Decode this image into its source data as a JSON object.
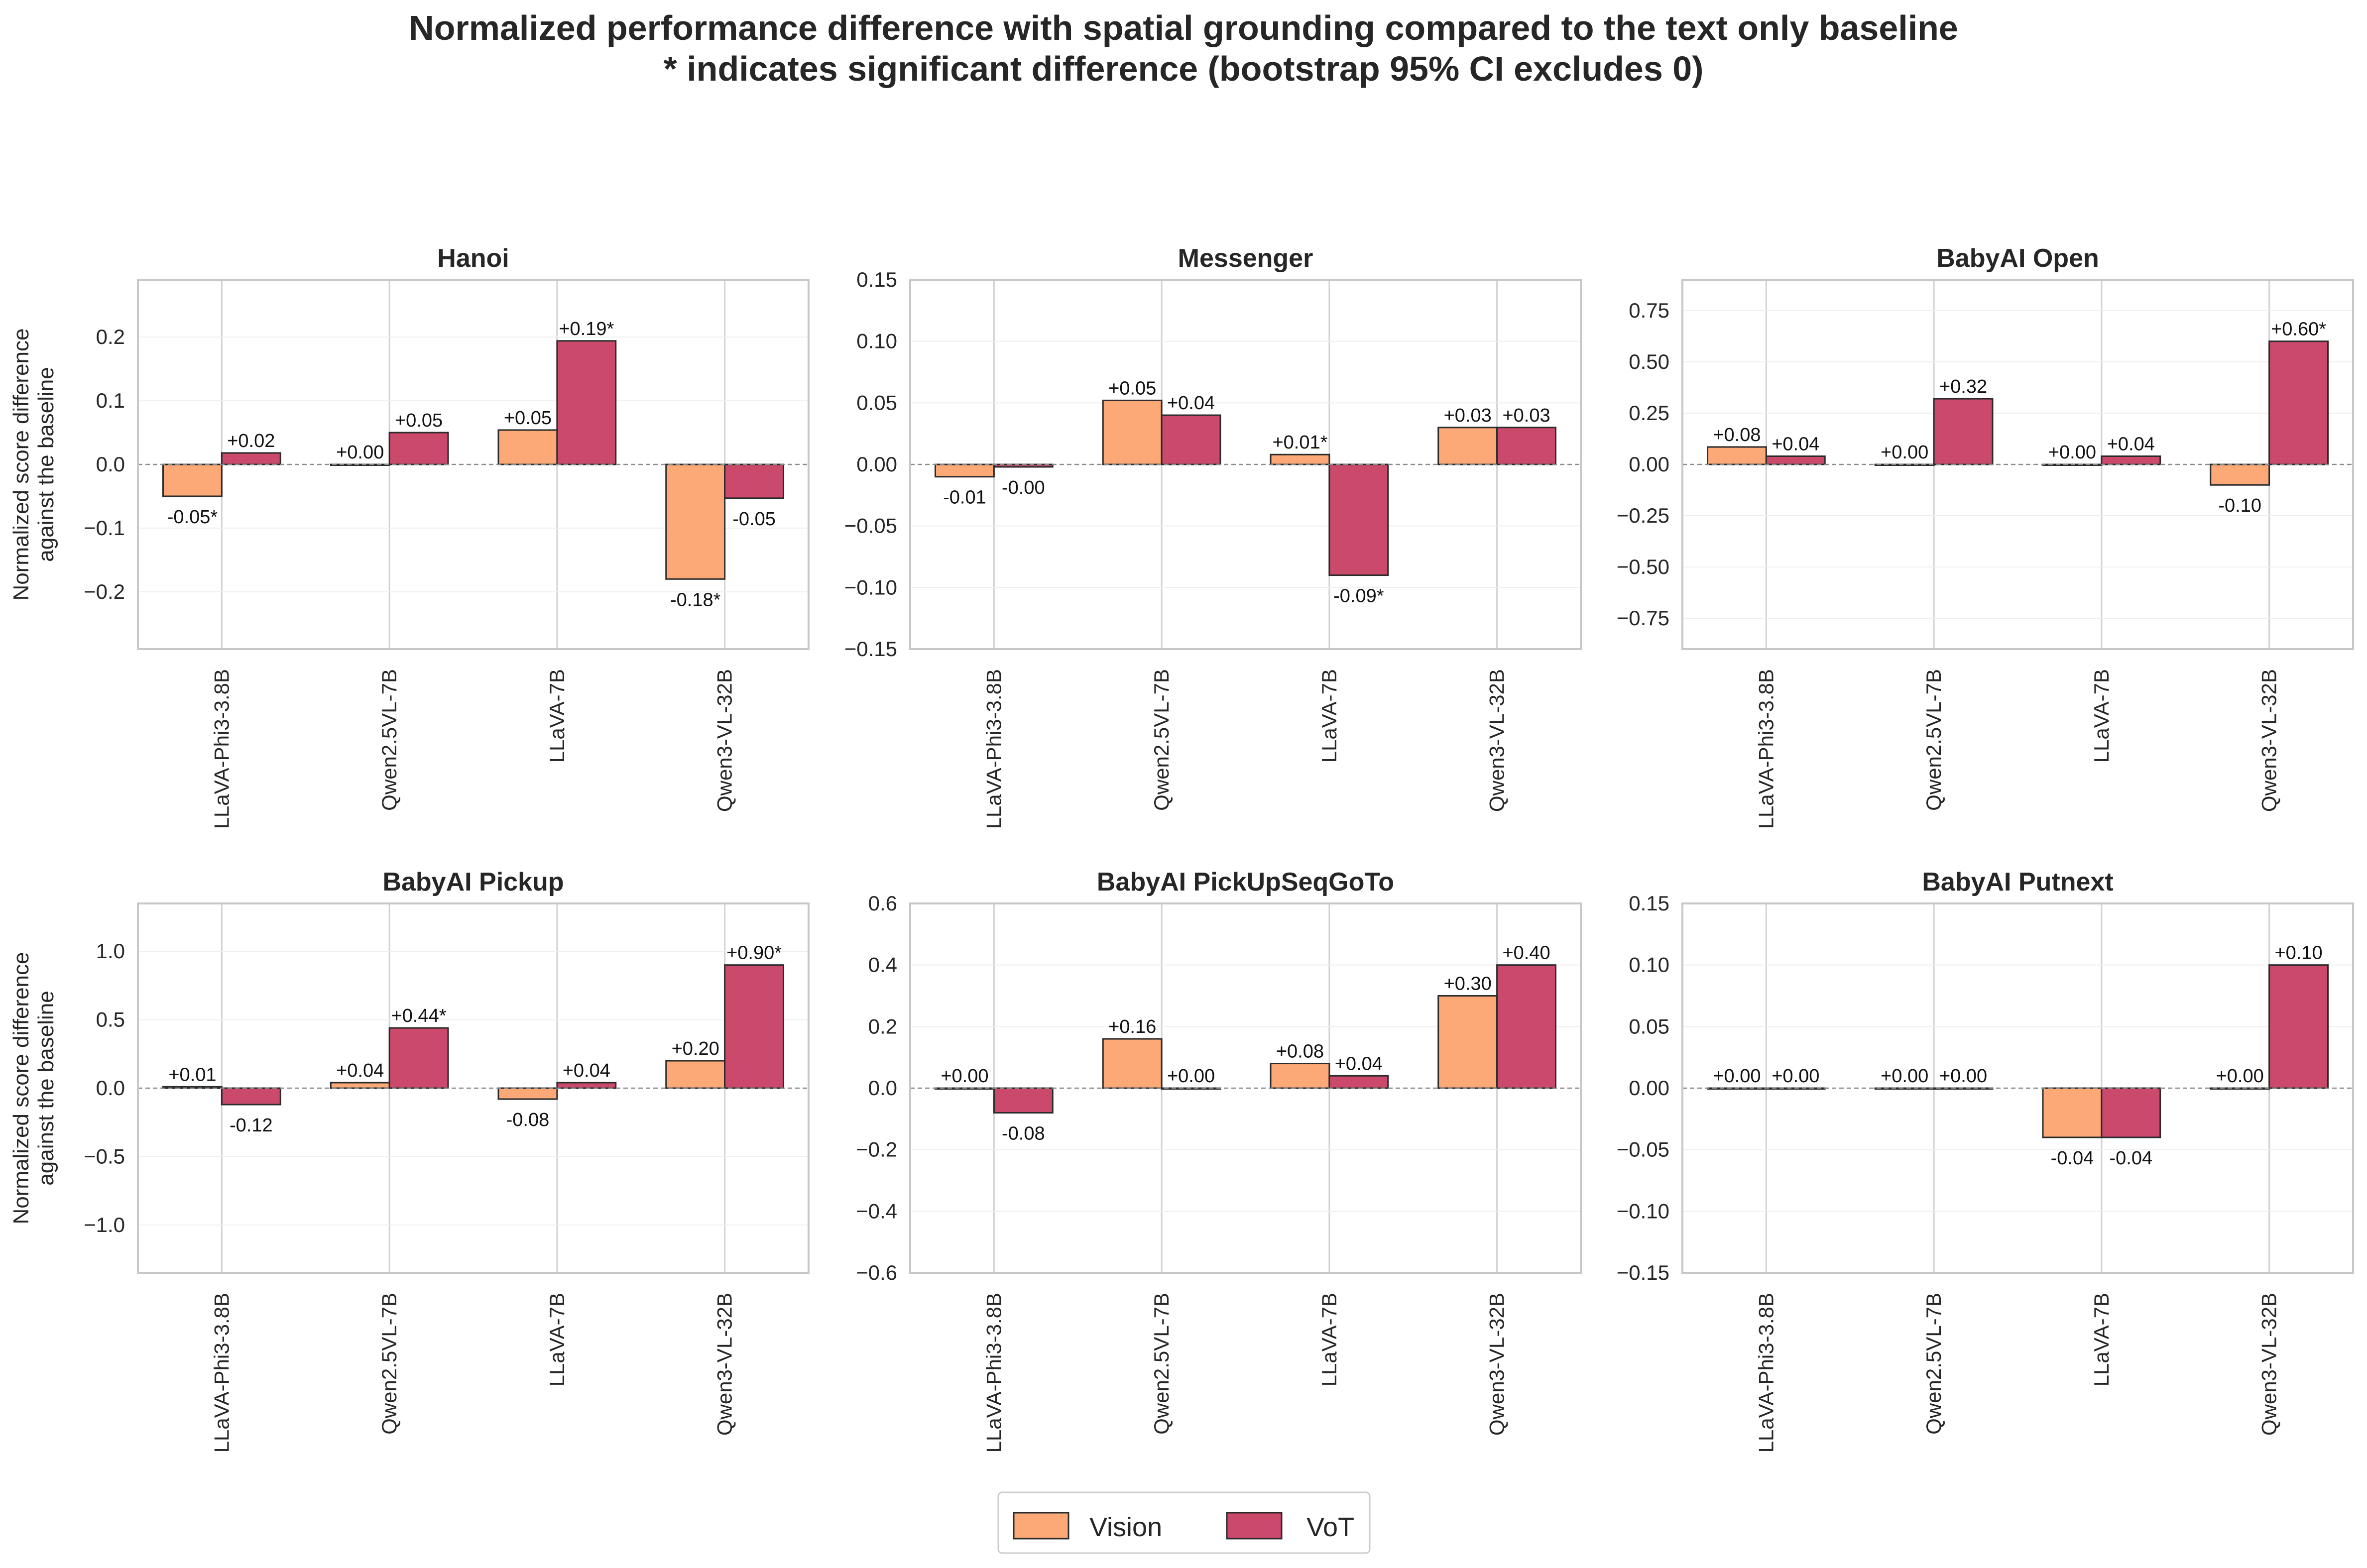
{
  "figure": {
    "title_line1": "Normalized performance difference with spatial grounding compared to the text only baseline",
    "title_line2": "* indicates significant difference (bootstrap 95% CI excludes 0)"
  },
  "legend": [
    {
      "name": "Vision",
      "color": "#FCA977"
    },
    {
      "name": "VoT",
      "color": "#CB4A6C"
    }
  ],
  "colors": {
    "vision": "#FCA977",
    "vot": "#CB4A6C",
    "edge": "#2b2b2b",
    "grid": "#e6e6e6",
    "frame": "#c8c8c8"
  },
  "ylabel_line1": "Normalized score difference",
  "ylabel_line2": "against the baseline",
  "chart_data": [
    {
      "type": "bar",
      "title": "Hanoi",
      "categories": [
        "LLaVA-Phi3-3.8B",
        "Qwen2.5VL-7B",
        "LLaVA-7B",
        "Qwen3-VL-32B"
      ],
      "series": [
        {
          "name": "Vision",
          "values": [
            -0.05,
            0.0,
            0.054,
            -0.18
          ],
          "labels": [
            "-0.05*",
            "+0.00",
            "+0.05",
            "-0.18*"
          ]
        },
        {
          "name": "VoT",
          "values": [
            0.018,
            0.05,
            0.194,
            -0.053
          ],
          "labels": [
            "+0.02",
            "+0.05",
            "+0.19*",
            "-0.05"
          ]
        }
      ],
      "ylim": [
        -0.29,
        0.29
      ],
      "yticks": [
        -0.2,
        -0.1,
        0.0,
        0.1,
        0.2
      ],
      "ytick_labels": [
        "−0.2",
        "−0.1",
        "0.0",
        "0.1",
        "0.2"
      ]
    },
    {
      "type": "bar",
      "title": "Messenger",
      "categories": [
        "LLaVA-Phi3-3.8B",
        "Qwen2.5VL-7B",
        "LLaVA-7B",
        "Qwen3-VL-32B"
      ],
      "series": [
        {
          "name": "Vision",
          "values": [
            -0.01,
            0.052,
            0.008,
            0.03
          ],
          "labels": [
            "-0.01",
            "+0.05",
            "+0.01*",
            "+0.03"
          ]
        },
        {
          "name": "VoT",
          "values": [
            -0.002,
            0.04,
            -0.09,
            0.03
          ],
          "labels": [
            "-0.00",
            "+0.04",
            "-0.09*",
            "+0.03"
          ]
        }
      ],
      "ylim": [
        -0.15,
        0.15
      ],
      "yticks": [
        -0.15,
        -0.1,
        -0.05,
        0.0,
        0.05,
        0.1,
        0.15
      ],
      "ytick_labels": [
        "−0.15",
        "−0.10",
        "−0.05",
        "0.00",
        "0.05",
        "0.10",
        "0.15"
      ]
    },
    {
      "type": "bar",
      "title": "BabyAI Open",
      "categories": [
        "LLaVA-Phi3-3.8B",
        "Qwen2.5VL-7B",
        "LLaVA-7B",
        "Qwen3-VL-32B"
      ],
      "series": [
        {
          "name": "Vision",
          "values": [
            0.085,
            0.0,
            0.0,
            -0.1
          ],
          "labels": [
            "+0.08",
            "+0.00",
            "+0.00",
            "-0.10"
          ]
        },
        {
          "name": "VoT",
          "values": [
            0.04,
            0.32,
            0.04,
            0.6
          ],
          "labels": [
            "+0.04",
            "+0.32",
            "+0.04",
            "+0.60*"
          ]
        }
      ],
      "ylim": [
        -0.9,
        0.9
      ],
      "yticks": [
        -0.75,
        -0.5,
        -0.25,
        0.0,
        0.25,
        0.5,
        0.75
      ],
      "ytick_labels": [
        "−0.75",
        "−0.50",
        "−0.25",
        "0.00",
        "0.25",
        "0.50",
        "0.75"
      ]
    },
    {
      "type": "bar",
      "title": "BabyAI Pickup",
      "categories": [
        "LLaVA-Phi3-3.8B",
        "Qwen2.5VL-7B",
        "LLaVA-7B",
        "Qwen3-VL-32B"
      ],
      "series": [
        {
          "name": "Vision",
          "values": [
            0.01,
            0.04,
            -0.08,
            0.2
          ],
          "labels": [
            "+0.01",
            "+0.04",
            "-0.08",
            "+0.20"
          ]
        },
        {
          "name": "VoT",
          "values": [
            -0.12,
            0.44,
            0.04,
            0.9
          ],
          "labels": [
            "-0.12",
            "+0.44*",
            "+0.04",
            "+0.90*"
          ]
        }
      ],
      "ylim": [
        -1.35,
        1.35
      ],
      "yticks": [
        -1.0,
        -0.5,
        0.0,
        0.5,
        1.0
      ],
      "ytick_labels": [
        "−1.0",
        "−0.5",
        "0.0",
        "0.5",
        "1.0"
      ]
    },
    {
      "type": "bar",
      "title": "BabyAI PickUpSeqGoTo",
      "categories": [
        "LLaVA-Phi3-3.8B",
        "Qwen2.5VL-7B",
        "LLaVA-7B",
        "Qwen3-VL-32B"
      ],
      "series": [
        {
          "name": "Vision",
          "values": [
            0.0,
            0.16,
            0.08,
            0.3
          ],
          "labels": [
            "+0.00",
            "+0.16",
            "+0.08",
            "+0.30"
          ]
        },
        {
          "name": "VoT",
          "values": [
            -0.08,
            0.0,
            0.04,
            0.4
          ],
          "labels": [
            "-0.08",
            "+0.00",
            "+0.04",
            "+0.40"
          ]
        }
      ],
      "ylim": [
        -0.6,
        0.6
      ],
      "yticks": [
        -0.6,
        -0.4,
        -0.2,
        0.0,
        0.2,
        0.4,
        0.6
      ],
      "ytick_labels": [
        "−0.6",
        "−0.4",
        "−0.2",
        "0.0",
        "0.2",
        "0.4",
        "0.6"
      ]
    },
    {
      "type": "bar",
      "title": "BabyAI Putnext",
      "categories": [
        "LLaVA-Phi3-3.8B",
        "Qwen2.5VL-7B",
        "LLaVA-7B",
        "Qwen3-VL-32B"
      ],
      "series": [
        {
          "name": "Vision",
          "values": [
            0.0,
            0.0,
            -0.04,
            0.0
          ],
          "labels": [
            "+0.00",
            "+0.00",
            "-0.04",
            "+0.00"
          ]
        },
        {
          "name": "VoT",
          "values": [
            0.0,
            0.0,
            -0.04,
            0.1
          ],
          "labels": [
            "+0.00",
            "+0.00",
            "-0.04",
            "+0.10"
          ]
        }
      ],
      "ylim": [
        -0.15,
        0.15
      ],
      "yticks": [
        -0.15,
        -0.1,
        -0.05,
        0.0,
        0.05,
        0.1,
        0.15
      ],
      "ytick_labels": [
        "−0.15",
        "−0.10",
        "−0.05",
        "0.00",
        "0.05",
        "0.10",
        "0.15"
      ]
    }
  ]
}
